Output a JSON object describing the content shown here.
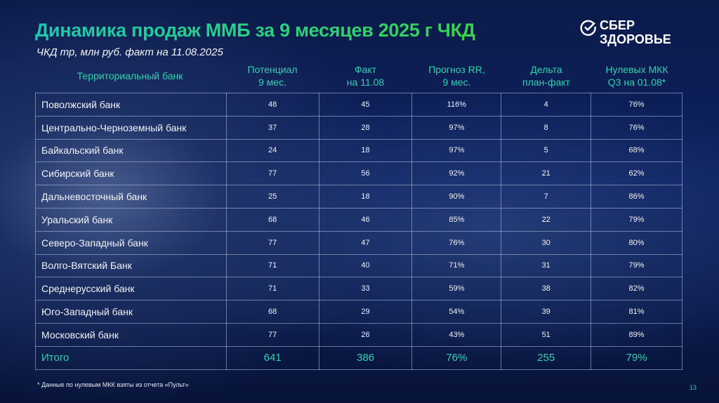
{
  "title": "Динамика продаж ММБ за 9 месяцев 2025 г ЧКД",
  "subtitle": "ЧКД тр, млн руб. факт на 11.08.2025",
  "logo": {
    "line1": "СБЕР",
    "line2": "ЗДОРОВЬЕ"
  },
  "headers": [
    "Территориальный банк",
    "Потенциал\n9 мес.",
    "Факт\nна 11.08",
    "Прогноз RR,\n9 мес.",
    "Дельта\nплан-факт",
    "Нулевых МКК\nQ3 на 01.08*"
  ],
  "rows": [
    [
      "Поволжский банк",
      "48",
      "45",
      "116%",
      "4",
      "76%"
    ],
    [
      "Центрально-Черноземный банк",
      "37",
      "28",
      "97%",
      "8",
      "76%"
    ],
    [
      "Байкальский банк",
      "24",
      "18",
      "97%",
      "5",
      "68%"
    ],
    [
      "Сибирский банк",
      "77",
      "56",
      "92%",
      "21",
      "62%"
    ],
    [
      "Дальневосточный банк",
      "25",
      "18",
      "90%",
      "7",
      "86%"
    ],
    [
      "Уральский банк",
      "68",
      "46",
      "85%",
      "22",
      "79%"
    ],
    [
      "Северо-Западный банк",
      "77",
      "47",
      "76%",
      "30",
      "80%"
    ],
    [
      "Волго-Вятский Банк",
      "71",
      "40",
      "71%",
      "31",
      "79%"
    ],
    [
      "Среднерусский банк",
      "71",
      "33",
      "59%",
      "38",
      "82%"
    ],
    [
      "Юго-Западный банк",
      "68",
      "29",
      "54%",
      "39",
      "81%"
    ],
    [
      "Московский банк",
      "77",
      "26",
      "43%",
      "51",
      "89%"
    ]
  ],
  "total": [
    "Итого",
    "641",
    "386",
    "76%",
    "255",
    "79%"
  ],
  "footnote": "* Данные по нулевым МКК взяты из отчета «Пульт»",
  "page_number": "13"
}
